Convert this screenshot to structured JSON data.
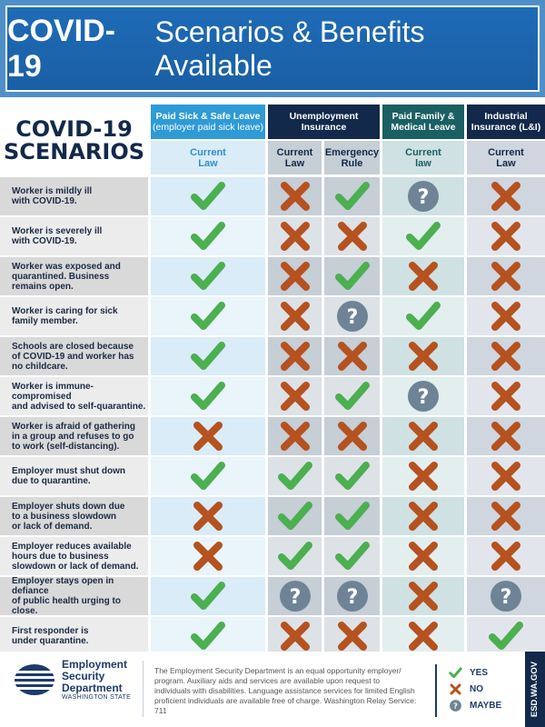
{
  "title": {
    "strong": "COVID-19",
    "rest": "Scenarios & Benefits Available"
  },
  "scenarios_header": {
    "line1": "COVID-19",
    "line2": "SCENARIOS"
  },
  "columns": [
    {
      "group": "Paid Sick & Safe Leave",
      "note": "(employer paid sick leave)",
      "sub": [
        "Current",
        "Law"
      ]
    },
    {
      "group": "Unemployment",
      "group2": "Insurance",
      "subA": [
        "Current",
        "Law"
      ],
      "subB": [
        "Emergency",
        "Rule"
      ]
    },
    {
      "group": "Paid Family &",
      "group2": "Medical Leave",
      "sub": [
        "Current",
        "law"
      ]
    },
    {
      "group": "Industrial",
      "group2": "Insurance (L&I)",
      "sub": [
        "Current",
        "Law"
      ]
    }
  ],
  "rows": [
    {
      "label": [
        "Worker is mildly ill",
        "with COVID-19."
      ],
      "marks": [
        "yes",
        "no",
        "yes",
        "maybe",
        "no"
      ]
    },
    {
      "label": [
        "Worker is severely ill",
        "with COVID-19."
      ],
      "marks": [
        "yes",
        "no",
        "no",
        "yes",
        "no"
      ]
    },
    {
      "label": [
        "Worker was exposed and",
        "quarantined. Business",
        "remains open."
      ],
      "marks": [
        "yes",
        "no",
        "yes",
        "no",
        "no"
      ]
    },
    {
      "label": [
        "Worker is caring for sick",
        "family member."
      ],
      "marks": [
        "yes",
        "no",
        "maybe",
        "yes",
        "no"
      ]
    },
    {
      "label": [
        "Schools are closed because",
        "of COVID-19 and worker has",
        "no childcare."
      ],
      "marks": [
        "yes",
        "no",
        "no",
        "no",
        "no"
      ]
    },
    {
      "label": [
        "Worker is immune-compromised",
        "and advised to self-quarantine."
      ],
      "marks": [
        "yes",
        "no",
        "yes",
        "maybe",
        "no"
      ]
    },
    {
      "label": [
        "Worker is afraid of gathering",
        "in a group and refuses to go",
        "to work (self-distancing)."
      ],
      "marks": [
        "no",
        "no",
        "no",
        "no",
        "no"
      ]
    },
    {
      "label": [
        "Employer must shut down",
        "due to quarantine."
      ],
      "marks": [
        "yes",
        "yes",
        "yes",
        "no",
        "no"
      ]
    },
    {
      "label": [
        "Employer shuts down due",
        "to a business slowdown",
        "or lack of demand."
      ],
      "marks": [
        "no",
        "yes",
        "yes",
        "no",
        "no"
      ]
    },
    {
      "label": [
        "Employer reduces available",
        "hours due to business",
        "slowdown or lack of demand."
      ],
      "marks": [
        "no",
        "yes",
        "yes",
        "no",
        "no"
      ]
    },
    {
      "label": [
        "Employer stays open in defiance",
        "of public health urging to close."
      ],
      "marks": [
        "yes",
        "maybe",
        "maybe",
        "no",
        "maybe"
      ]
    },
    {
      "label": [
        "First responder is",
        "under quarantine."
      ],
      "marks": [
        "yes",
        "no",
        "no",
        "no",
        "yes"
      ]
    }
  ],
  "footer": {
    "logo": {
      "line1": "Employment",
      "line2": "Security",
      "line3": "Department",
      "state": "WASHINGTON STATE"
    },
    "text": "The Employment Security Department is an equal opportunity employer/ program. Auxiliary aids and services are available upon request to individuals with disabilities. Language assistance services for limited English proficient individuals are available free of charge. Washington Relay Service: 711",
    "legend": {
      "yes": "YES",
      "no": "NO",
      "maybe": "MAYBE"
    },
    "side_tab": "ESD.WA.GOV"
  },
  "colors": {
    "yes": "#4caf50",
    "no": "#b5521f",
    "maybe": "#6e8496",
    "header_dark": "#13294b",
    "header_light_blue": "#2e9bd6",
    "header_teal": "#1a5f63"
  }
}
